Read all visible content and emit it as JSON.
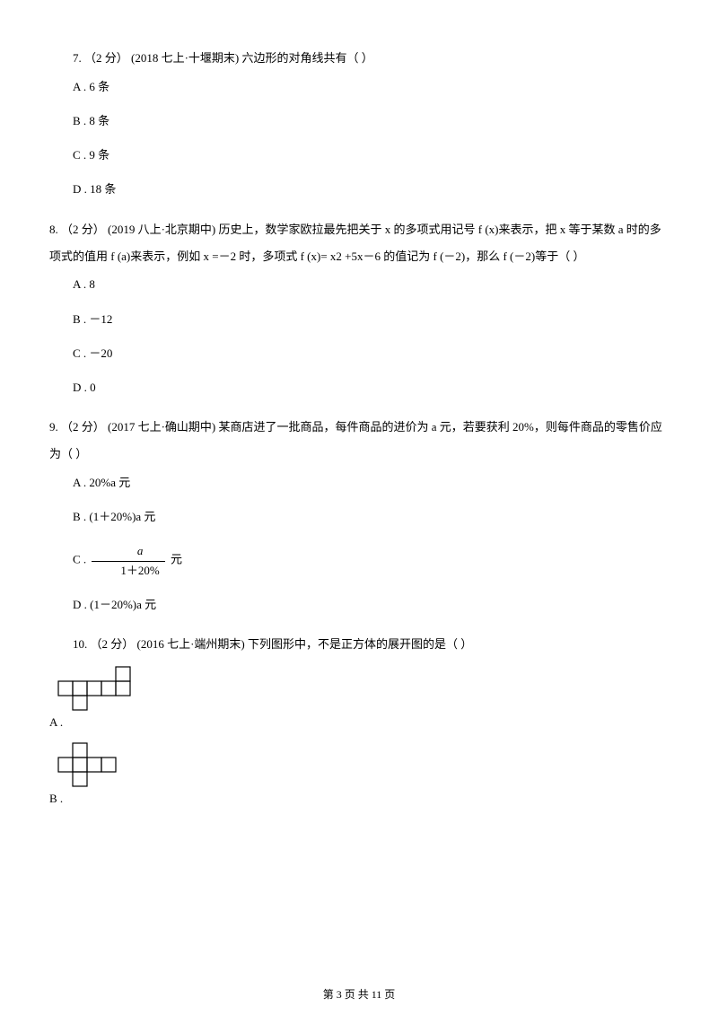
{
  "q7": {
    "stem": "7. （2 分） (2018 七上·十堰期末) 六边形的对角线共有（    ）",
    "opts": [
      "A . 6 条",
      "B . 8 条",
      "C . 9 条",
      "D . 18 条"
    ]
  },
  "q8": {
    "stem": "8. （2 分） (2019 八上·北京期中) 历史上，数学家欧拉最先把关于 x 的多项式用记号 f (x)来表示，把 x 等于某数 a 时的多项式的值用 f (a)来表示，例如 x =－2 时，多项式 f (x)= x2 +5x－6 的值记为 f (－2)，那么 f (－2)等于（    ）",
    "opts": [
      "A . 8",
      "B . －12",
      "C . －20",
      "D . 0"
    ]
  },
  "q9": {
    "stem": "9. （2 分） (2017 七上·确山期中)  某商店进了一批商品，每件商品的进价为 a 元，若要获利 20%，则每件商品的零售价应为（    ）",
    "optA": "A . 20%a 元",
    "optB": "B . (1＋20%)a 元",
    "optC_prefix": "C . ",
    "optC_num": "a",
    "optC_den": "1＋20%",
    "optC_suffix": " 元",
    "optD": "D . (1－20%)a 元"
  },
  "q10": {
    "stem": "10. （2 分） (2016 七上·端州期末) 下列图形中，不是正方体的展开图的是（    ）",
    "optA_label": "A .",
    "optB_label": "B .",
    "netA": {
      "cell": 16,
      "stroke": "#000000",
      "strokeWidth": 1.2,
      "cells": [
        [
          0,
          1
        ],
        [
          1,
          1
        ],
        [
          2,
          1
        ],
        [
          3,
          1
        ],
        [
          4,
          1
        ],
        [
          4,
          0
        ],
        [
          1,
          2
        ]
      ]
    },
    "netB": {
      "cell": 16,
      "stroke": "#000000",
      "strokeWidth": 1.2,
      "cells": [
        [
          1,
          0
        ],
        [
          0,
          1
        ],
        [
          1,
          1
        ],
        [
          2,
          1
        ],
        [
          3,
          1
        ],
        [
          1,
          2
        ]
      ]
    }
  },
  "footer": "第 3 页 共 11 页"
}
